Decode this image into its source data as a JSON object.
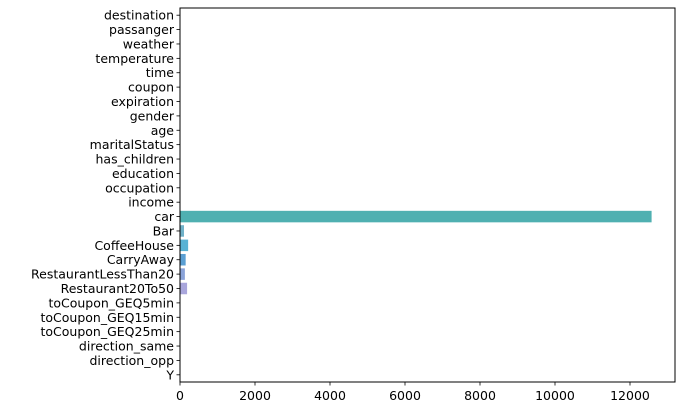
{
  "chart_data": {
    "type": "bar",
    "orientation": "horizontal",
    "title": "",
    "xlabel": "",
    "ylabel": "",
    "xlim": [
      0,
      13200
    ],
    "xticks": [
      0,
      2000,
      4000,
      6000,
      8000,
      10000,
      12000
    ],
    "grid": false,
    "legend": "none",
    "categories": [
      "destination",
      "passanger",
      "weather",
      "temperature",
      "time",
      "coupon",
      "expiration",
      "gender",
      "age",
      "maritalStatus",
      "has_children",
      "education",
      "occupation",
      "income",
      "car",
      "Bar",
      "CoffeeHouse",
      "CarryAway",
      "RestaurantLessThan20",
      "Restaurant20To50",
      "toCoupon_GEQ5min",
      "toCoupon_GEQ15min",
      "toCoupon_GEQ25min",
      "direction_same",
      "direction_opp",
      "Y"
    ],
    "values": [
      0,
      0,
      0,
      0,
      0,
      0,
      0,
      0,
      0,
      0,
      0,
      0,
      0,
      0,
      12576,
      107,
      217,
      151,
      130,
      189,
      0,
      0,
      0,
      0,
      0,
      0
    ],
    "colors": [
      "#3274a1",
      "#e1812c",
      "#3a923a",
      "#c03d3e",
      "#9372b2",
      "#845b53",
      "#d684bd",
      "#7f7f7f",
      "#a9aa35",
      "#2ea0b3",
      "#5a89b7",
      "#e89b5a",
      "#60a865",
      "#cc6466",
      "#4fb0b1",
      "#6fb1c8",
      "#58b2d4",
      "#5a9fd3",
      "#8aa3d9",
      "#a9a6dc",
      "#9b8fd0",
      "#8f84c4",
      "#8a7db7",
      "#8577ab",
      "#7d709e",
      "#766a92"
    ]
  }
}
